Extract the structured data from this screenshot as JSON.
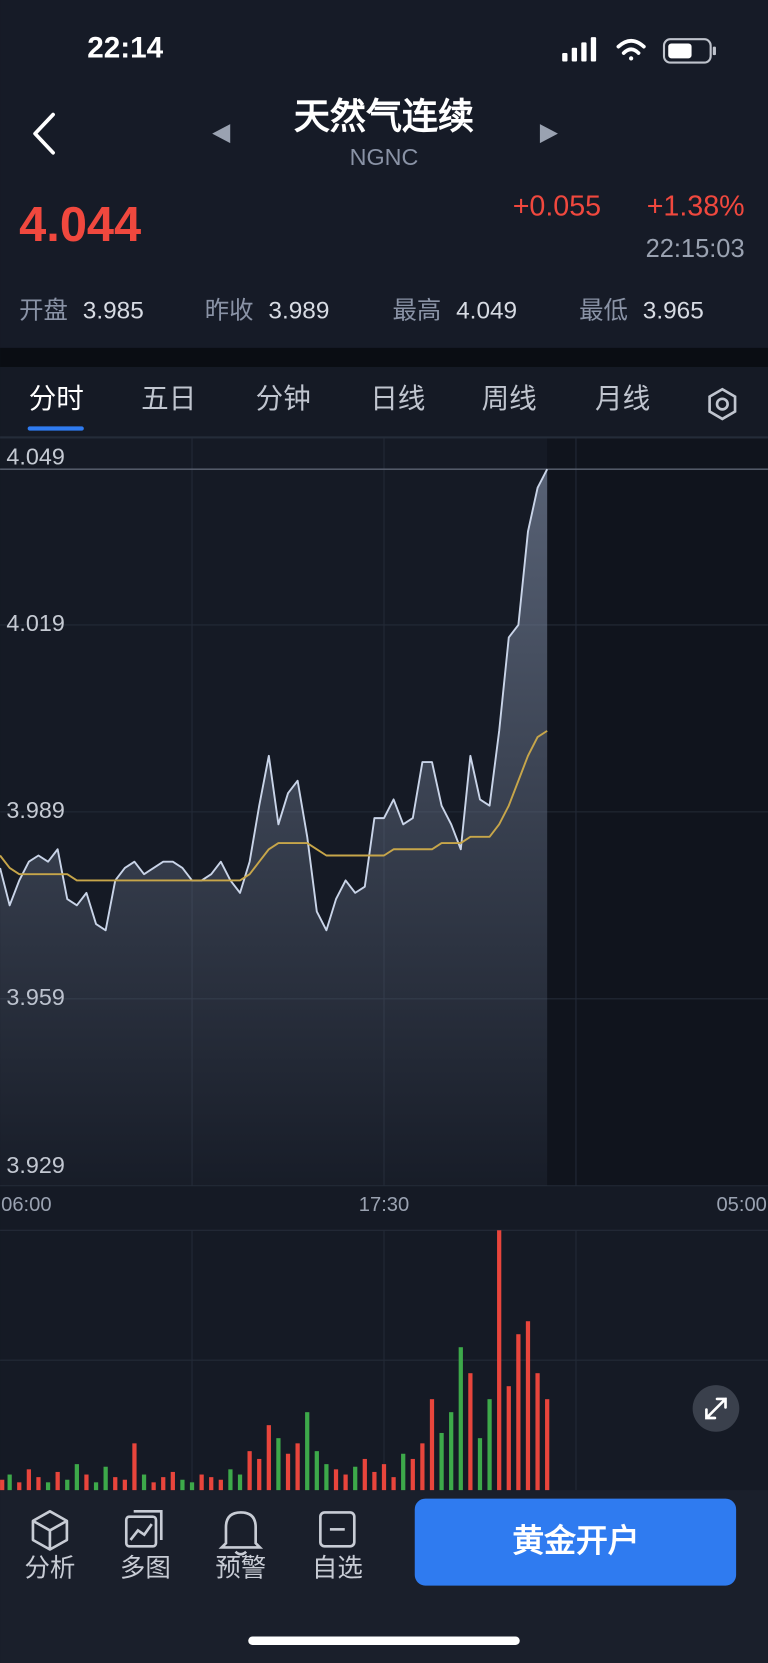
{
  "status_bar": {
    "time": "22:14"
  },
  "header": {
    "title": "天然气连续",
    "subtitle": "NGNC"
  },
  "quote": {
    "price": "4.044",
    "change": "+0.055",
    "change_pct": "+1.38%",
    "time": "22:15:03",
    "stats": [
      {
        "label": "开盘",
        "value": "3.985"
      },
      {
        "label": "昨收",
        "value": "3.989"
      },
      {
        "label": "最高",
        "value": "4.049"
      },
      {
        "label": "最低",
        "value": "3.965"
      }
    ]
  },
  "tabs": [
    "分时",
    "五日",
    "分钟",
    "日线",
    "周线",
    "月线"
  ],
  "chart_data": [
    {
      "type": "line",
      "categories": [
        "06:00",
        null,
        null,
        null,
        null,
        null,
        null,
        null,
        null,
        null,
        null,
        null,
        null,
        null,
        null,
        null,
        null,
        null,
        null,
        null,
        null,
        null,
        null,
        null,
        null,
        null,
        null,
        null,
        null,
        null,
        null,
        null,
        null,
        null,
        null,
        null,
        null,
        null,
        null,
        null,
        "17:30",
        null,
        null,
        null,
        null,
        null,
        null,
        null,
        null,
        null,
        null,
        null,
        null,
        null,
        null,
        null,
        null,
        null,
        null,
        null,
        null,
        null,
        null,
        null,
        null,
        null,
        null,
        null,
        null,
        null,
        null,
        null,
        null,
        null,
        null,
        null,
        null,
        null,
        null,
        null,
        "05:00"
      ],
      "series": [
        {
          "color": "#c9d4e8",
          "values": [
            3.98,
            3.974,
            3.978,
            3.981,
            3.982,
            3.981,
            3.983,
            3.975,
            3.974,
            3.976,
            3.971,
            3.97,
            3.978,
            3.98,
            3.981,
            3.979,
            3.98,
            3.981,
            3.981,
            3.98,
            3.978,
            3.978,
            3.979,
            3.981,
            3.978,
            3.976,
            3.981,
            3.99,
            3.998,
            3.987,
            3.992,
            3.994,
            3.985,
            3.973,
            3.97,
            3.975,
            3.978,
            3.976,
            3.977,
            3.988,
            3.988,
            3.991,
            3.987,
            3.988,
            3.997,
            3.997,
            3.99,
            3.987,
            3.983,
            3.998,
            3.991,
            3.99,
            4.002,
            4.017,
            4.019,
            4.034,
            4.041,
            4.044,
            null,
            null,
            null,
            null,
            null,
            null,
            null,
            null,
            null,
            null,
            null,
            null,
            null,
            null,
            null,
            null,
            null,
            null,
            null,
            null,
            null,
            null,
            null
          ]
        },
        {
          "color": "#c7a64a",
          "values": [
            3.982,
            3.98,
            3.979,
            3.979,
            3.979,
            3.979,
            3.979,
            3.979,
            3.978,
            3.978,
            3.978,
            3.978,
            3.978,
            3.978,
            3.978,
            3.978,
            3.978,
            3.978,
            3.978,
            3.978,
            3.978,
            3.978,
            3.978,
            3.978,
            3.978,
            3.978,
            3.979,
            3.981,
            3.983,
            3.984,
            3.984,
            3.984,
            3.984,
            3.983,
            3.982,
            3.982,
            3.982,
            3.982,
            3.982,
            3.982,
            3.982,
            3.983,
            3.983,
            3.983,
            3.983,
            3.983,
            3.984,
            3.984,
            3.984,
            3.985,
            3.985,
            3.985,
            3.987,
            3.99,
            3.994,
            3.998,
            4.001,
            4.002,
            null,
            null,
            null,
            null,
            null,
            null,
            null,
            null,
            null,
            null,
            null,
            null,
            null,
            null,
            null,
            null,
            null,
            null,
            null,
            null,
            null,
            null,
            null
          ]
        }
      ],
      "ylim": [
        3.929,
        4.049
      ],
      "yticks": [
        4.049,
        4.019,
        3.989,
        3.959,
        3.929
      ],
      "hline": 4.044,
      "grid": true,
      "area": true
    },
    {
      "type": "bar",
      "values": [
        4,
        6,
        3,
        8,
        5,
        3,
        7,
        4,
        10,
        6,
        3,
        9,
        5,
        4,
        18,
        6,
        3,
        5,
        7,
        4,
        3,
        6,
        5,
        4,
        8,
        6,
        15,
        12,
        25,
        20,
        14,
        18,
        30,
        15,
        10,
        8,
        6,
        9,
        12,
        7,
        10,
        5,
        14,
        12,
        18,
        35,
        22,
        30,
        55,
        45,
        20,
        35,
        100,
        40,
        60,
        65,
        45,
        35,
        null,
        null,
        null,
        null,
        null,
        null,
        null,
        null,
        null,
        null,
        null,
        null,
        null,
        null,
        null,
        null,
        null,
        null,
        null,
        null,
        null,
        null,
        null
      ],
      "colors": [
        "#e8453c",
        "#3da94a",
        "#e8453c",
        "#e8453c",
        "#e8453c",
        "#3da94a",
        "#e8453c",
        "#3da94a",
        "#3da94a",
        "#e8453c",
        "#3da94a",
        "#3da94a",
        "#e8453c",
        "#e8453c",
        "#e8453c",
        "#3da94a",
        "#e8453c",
        "#e8453c",
        "#e8453c",
        "#3da94a",
        "#3da94a",
        "#e8453c",
        "#e8453c",
        "#e8453c",
        "#3da94a",
        "#3da94a",
        "#e8453c",
        "#e8453c",
        "#e8453c",
        "#3da94a",
        "#e8453c",
        "#e8453c",
        "#3da94a",
        "#3da94a",
        "#3da94a",
        "#e8453c",
        "#e8453c",
        "#3da94a",
        "#e8453c",
        "#e8453c",
        "#e8453c",
        "#e8453c",
        "#3da94a",
        "#e8453c",
        "#e8453c",
        "#e8453c",
        "#3da94a",
        "#3da94a",
        "#3da94a",
        "#e8453c",
        "#3da94a",
        "#3da94a",
        "#e8453c",
        "#e8453c",
        "#e8453c",
        "#e8453c",
        "#e8453c",
        "#e8453c",
        null,
        null,
        null,
        null,
        null,
        null,
        null,
        null,
        null,
        null,
        null,
        null,
        null,
        null,
        null,
        null,
        null,
        null,
        null,
        null,
        null,
        null,
        null
      ],
      "ylim": [
        0,
        100
      ],
      "grid": true
    }
  ],
  "bottom_nav": {
    "items": [
      "分析",
      "多图",
      "预警",
      "自选"
    ],
    "button": "黄金开户"
  }
}
